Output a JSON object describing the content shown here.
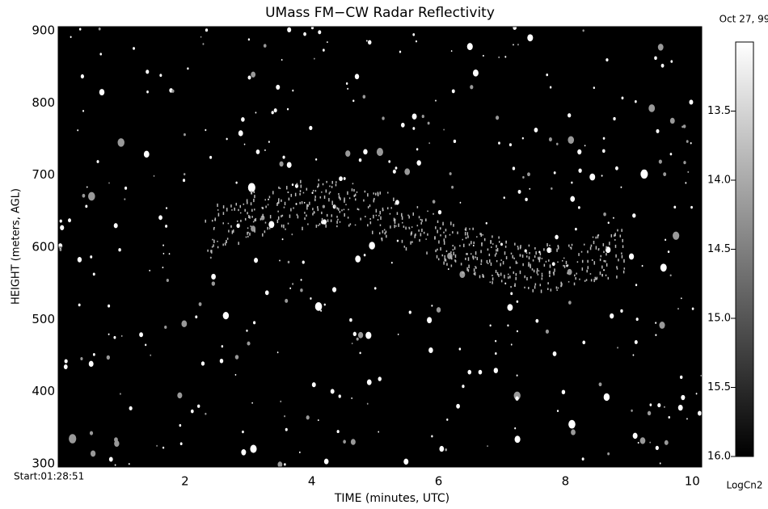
{
  "chart_data": {
    "type": "image",
    "title": "UMass FM−CW Radar Reflectivity",
    "date": "Oct 27, 99",
    "x_label": "TIME (minutes, UTC)",
    "y_label": "HEIGHT (meters, AGL)",
    "xlim": [
      0,
      10.15
    ],
    "xticks": [
      {
        "value": 0,
        "label": "Start:01:28:51"
      },
      2,
      4,
      6,
      8,
      10
    ],
    "ylim": [
      300,
      900
    ],
    "yticks": [
      300,
      400,
      500,
      600,
      700,
      800,
      900
    ],
    "background": "#000000",
    "colorbar": {
      "label": "LogCn2",
      "lim": [
        13.0,
        16.0
      ],
      "colors": [
        "#ffffff",
        "#000000"
      ],
      "ticks": [
        13.5,
        {
          "value": 14,
          "label": "14.0"
        },
        14.5,
        {
          "value": 15,
          "label": "15.0"
        },
        15.5,
        {
          "value": 16,
          "label": "16.0"
        }
      ]
    }
  }
}
